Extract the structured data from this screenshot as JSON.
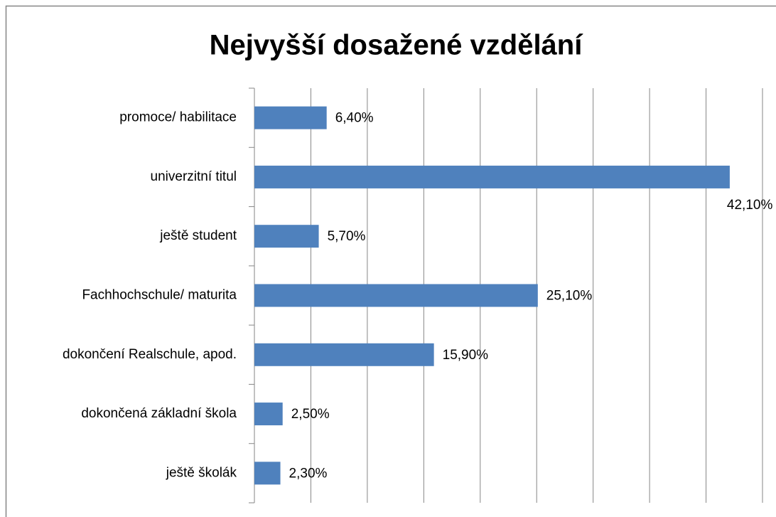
{
  "chart_data": {
    "type": "bar",
    "orientation": "horizontal",
    "title": "Nejvyšší dosažené vzdělání",
    "categories": [
      "promoce/ habilitace",
      "univerzitní titul",
      "ještě student",
      "Fachhochschule/ maturita",
      "dokončení Realschule, apod.",
      "dokončená základní škola",
      "ještě školák"
    ],
    "values": [
      6.4,
      42.1,
      5.7,
      25.1,
      15.9,
      2.5,
      2.3
    ],
    "value_labels": [
      "6,40%",
      "42,10%",
      "5,70%",
      "25,10%",
      "15,90%",
      "2,50%",
      "2,30%"
    ],
    "color": "#4f81bd",
    "xlim": [
      0,
      45
    ],
    "xticks": [
      0,
      5,
      10,
      15,
      20,
      25,
      30,
      35,
      40,
      45
    ],
    "grid": true
  }
}
